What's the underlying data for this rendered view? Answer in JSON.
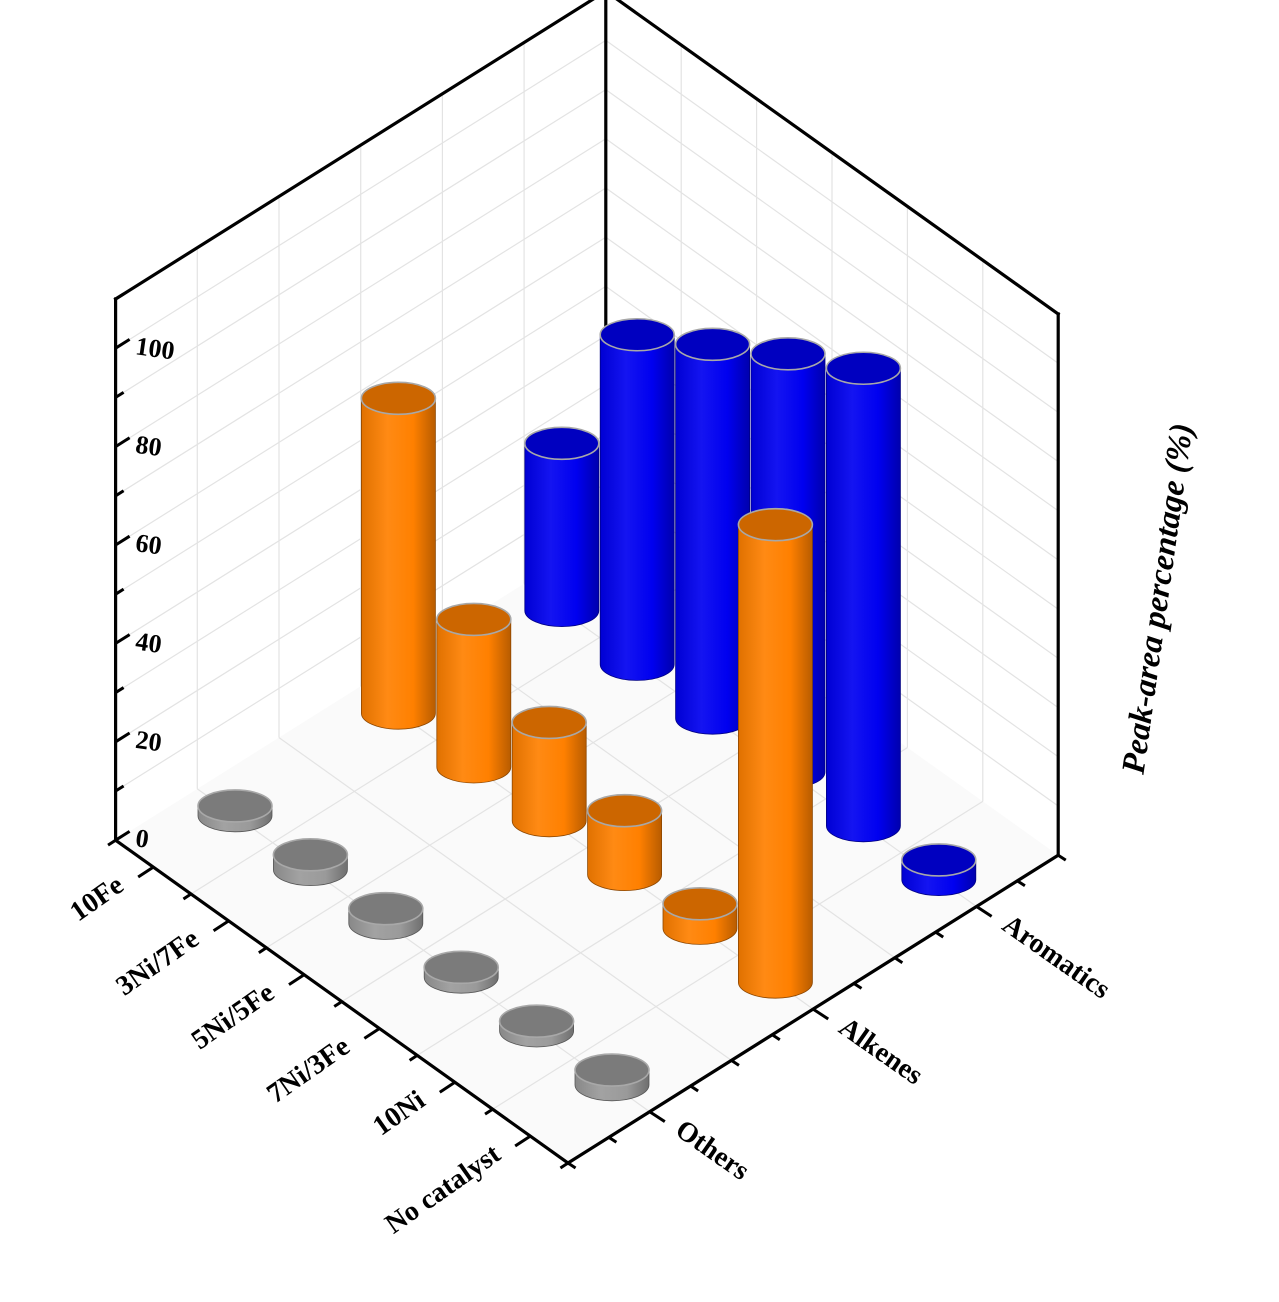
{
  "chart_data": {
    "type": "bar",
    "subtype": "3d-cylinder",
    "title": "",
    "xlabel": "",
    "ylabel": "",
    "zlabel": "Peak-area percentage (%)",
    "zlim": [
      0,
      110
    ],
    "zticks": [
      0,
      20,
      40,
      60,
      80,
      100
    ],
    "grid": true,
    "legend": "none",
    "catalysts": [
      "10Fe",
      "3Ni/7Fe",
      "5Ni/5Fe",
      "7Ni/3Fe",
      "10Ni",
      "No catalyst"
    ],
    "products": [
      "Others",
      "Alkenes",
      "Aromatics"
    ],
    "series": [
      {
        "product": "Others",
        "color": "#9a9a9a",
        "values": [
          2,
          3,
          3,
          2,
          2,
          3
        ]
      },
      {
        "product": "Alkenes",
        "color": "#ff8000",
        "values": [
          64,
          30,
          20,
          13,
          5,
          93
        ]
      },
      {
        "product": "Aromatics",
        "color": "#0000f0",
        "values": [
          34,
          67,
          76,
          85,
          93,
          4
        ]
      }
    ]
  }
}
